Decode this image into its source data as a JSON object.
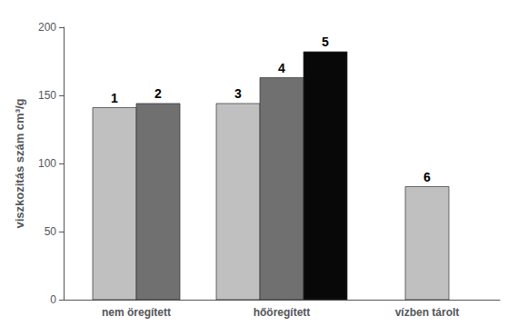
{
  "chart_data": {
    "type": "bar",
    "categories": [
      "nem öregített",
      "hőöregített",
      "vízben tárolt"
    ],
    "series": [
      {
        "color": "#c0c0c0",
        "values": [
          141,
          144,
          83
        ],
        "labels": [
          "1",
          "3",
          "6"
        ]
      },
      {
        "color": "#707070",
        "values": [
          144,
          163,
          null
        ],
        "labels": [
          "2",
          "4",
          null
        ]
      },
      {
        "color": "#080808",
        "values": [
          null,
          182,
          null
        ],
        "labels": [
          null,
          "5",
          null
        ]
      }
    ],
    "ylabel": "viszkozitás szám cm³/g",
    "ylim": [
      0,
      200
    ],
    "yticks": [
      0,
      50,
      100,
      150,
      200
    ],
    "grid": false
  }
}
